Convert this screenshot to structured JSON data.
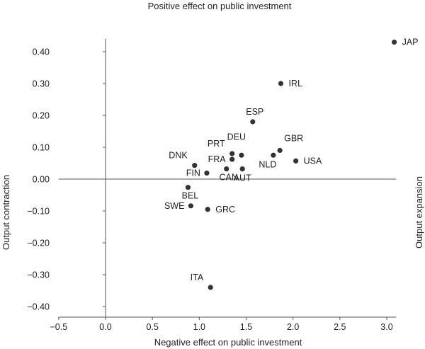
{
  "chart_data": {
    "type": "scatter",
    "title": "",
    "top_label": "Positive effect on public investment",
    "xlabel": "Negative effect on public investment",
    "ylabel": "Output contraction",
    "y2label": "Output expansion",
    "xlim": [
      -0.5,
      3.1
    ],
    "ylim": [
      -0.4,
      0.45
    ],
    "x_ticks": [
      -0.5,
      0.0,
      0.5,
      1.0,
      1.5,
      2.0,
      2.5,
      3.0
    ],
    "x_tick_labels": [
      "−0.5",
      "0.0",
      "0.5",
      "1.0",
      "1.5",
      "2.0",
      "2.5",
      "3.0"
    ],
    "y_ticks": [
      0.4,
      0.3,
      0.2,
      0.1,
      0.0,
      -0.1,
      -0.2,
      -0.3,
      -0.4
    ],
    "y_tick_labels": [
      "0.40",
      "0.30",
      "0.20",
      "0.10",
      "0.00",
      "−0.10",
      "−0.20",
      "−0.30",
      "−0.40"
    ],
    "grid": false,
    "points": [
      {
        "label": "JAP",
        "x": 3.08,
        "y": 0.43,
        "pos": "right"
      },
      {
        "label": "IRL",
        "x": 1.87,
        "y": 0.3,
        "pos": "right"
      },
      {
        "label": "ESP",
        "x": 1.57,
        "y": 0.18,
        "pos": "above"
      },
      {
        "label": "DEU",
        "x": 1.45,
        "y": 0.075,
        "pos": "above-far"
      },
      {
        "label": "GBR",
        "x": 1.86,
        "y": 0.09,
        "pos": "above-right"
      },
      {
        "label": "PRT",
        "x": 1.35,
        "y": 0.08,
        "pos": "above-left"
      },
      {
        "label": "NLD",
        "x": 1.79,
        "y": 0.075,
        "pos": "below-left"
      },
      {
        "label": "USA",
        "x": 2.03,
        "y": 0.057,
        "pos": "right"
      },
      {
        "label": "FRA",
        "x": 1.35,
        "y": 0.062,
        "pos": "left"
      },
      {
        "label": "DNK",
        "x": 0.95,
        "y": 0.043,
        "pos": "above-left"
      },
      {
        "label": "FIN",
        "x": 1.08,
        "y": 0.019,
        "pos": "left"
      },
      {
        "label": "CAN",
        "x": 1.29,
        "y": 0.032,
        "pos": "below"
      },
      {
        "label": "AUT",
        "x": 1.46,
        "y": 0.032,
        "pos": "below-right"
      },
      {
        "label": "BEL",
        "x": 0.88,
        "y": -0.026,
        "pos": "below"
      },
      {
        "label": "SWE",
        "x": 0.91,
        "y": -0.084,
        "pos": "left"
      },
      {
        "label": "GRC",
        "x": 1.09,
        "y": -0.095,
        "pos": "right"
      },
      {
        "label": "ITA",
        "x": 1.12,
        "y": -0.34,
        "pos": "above-left"
      }
    ]
  }
}
